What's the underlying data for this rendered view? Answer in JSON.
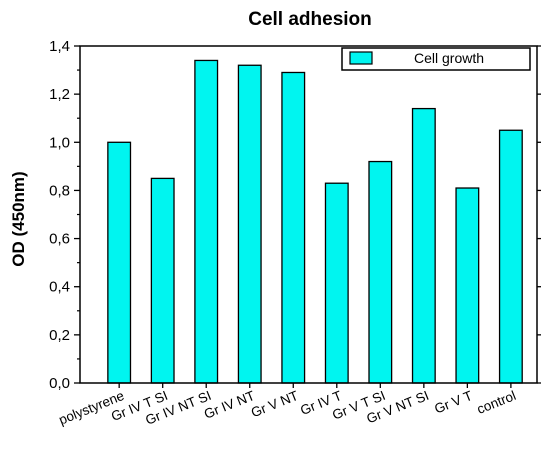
{
  "chart_data": {
    "type": "bar",
    "title": "Cell adhesion",
    "xlabel": "",
    "ylabel": "OD (450nm)",
    "ylim": [
      0,
      1.4
    ],
    "yticks": [
      "0,0",
      "0,2",
      "0,4",
      "0,6",
      "0,8",
      "1,0",
      "1,2",
      "1,4"
    ],
    "categories": [
      "polystyrene",
      "Gr IV T SI",
      "Gr IV NT SI",
      "Gr IV NT",
      "Gr V NT",
      "Gr IV T",
      "Gr V T SI",
      "Gr V NT SI",
      "Gr V T",
      "control"
    ],
    "series": [
      {
        "name": "Cell growth",
        "values": [
          1.0,
          0.85,
          1.34,
          1.32,
          1.29,
          0.83,
          0.92,
          1.14,
          0.81,
          1.05
        ]
      }
    ],
    "legend_position": "top-right",
    "grid": false,
    "colors": {
      "bar_fill": "#00f5f0",
      "bar_stroke": "#000000",
      "axis": "#000000"
    }
  }
}
